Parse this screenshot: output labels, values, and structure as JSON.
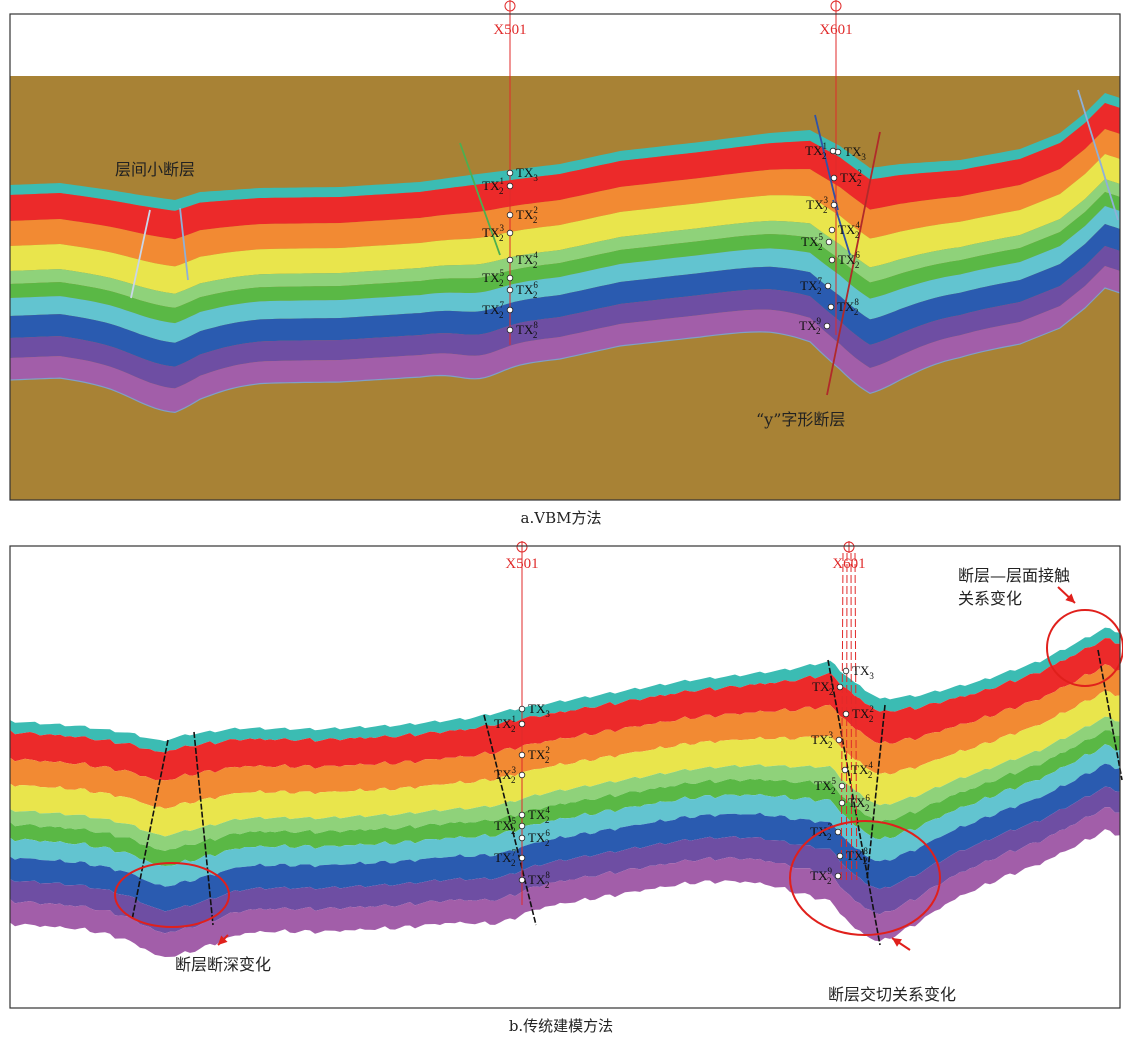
{
  "colors": {
    "background_a": "#a88235",
    "layers": [
      "#3bbcb3",
      "#ec2a2a",
      "#f28a33",
      "#e9e54c",
      "#8fd27a",
      "#5ab845",
      "#62c4d0",
      "#2a5bb0",
      "#6e4ea3",
      "#a25ea9"
    ],
    "well_line": "#e02a2a",
    "annotation_red": "#e0201c",
    "fault_black": "#111111"
  },
  "panel_a": {
    "caption": "a.VBM方法",
    "wells": [
      {
        "name": "X501"
      },
      {
        "name": "X601"
      }
    ],
    "annotations": {
      "small_fault": "层间小断层",
      "y_fault": "“y”字形断层"
    },
    "well_markers_x501": [
      {
        "base": "TX",
        "sub": "3",
        "sup": ""
      },
      {
        "base": "TX",
        "sub": "2",
        "sup": "1"
      },
      {
        "base": "TX",
        "sub": "2",
        "sup": "2"
      },
      {
        "base": "TX",
        "sub": "2",
        "sup": "3"
      },
      {
        "base": "TX",
        "sub": "2",
        "sup": "4"
      },
      {
        "base": "TX",
        "sub": "2",
        "sup": "5"
      },
      {
        "base": "TX",
        "sub": "2",
        "sup": "6"
      },
      {
        "base": "TX",
        "sub": "2",
        "sup": "7"
      },
      {
        "base": "TX",
        "sub": "2",
        "sup": "8"
      }
    ],
    "well_markers_x601": [
      {
        "base": "TX",
        "sub": "3",
        "sup": ""
      },
      {
        "base": "TX",
        "sub": "2",
        "sup": "1"
      },
      {
        "base": "TX",
        "sub": "2",
        "sup": "2"
      },
      {
        "base": "TX",
        "sub": "2",
        "sup": "3"
      },
      {
        "base": "TX",
        "sub": "2",
        "sup": "4"
      },
      {
        "base": "TX",
        "sub": "2",
        "sup": "5"
      },
      {
        "base": "TX",
        "sub": "2",
        "sup": "6"
      },
      {
        "base": "TX",
        "sub": "2",
        "sup": "7"
      },
      {
        "base": "TX",
        "sub": "2",
        "sup": "8"
      },
      {
        "base": "TX",
        "sub": "2",
        "sup": "9"
      }
    ]
  },
  "panel_b": {
    "caption": "b.传统建模方法",
    "wells": [
      {
        "name": "X501"
      },
      {
        "name": "X601"
      }
    ],
    "annotations": {
      "contact_change_line1": "断层—层面接触",
      "contact_change_line2": "关系变化",
      "throw_change": "断层断深变化",
      "intersection_change": "断层交切关系变化"
    },
    "well_markers_x501": [
      {
        "base": "TX",
        "sub": "3",
        "sup": ""
      },
      {
        "base": "TX",
        "sub": "2",
        "sup": "1"
      },
      {
        "base": "TX",
        "sub": "2",
        "sup": "2"
      },
      {
        "base": "TX",
        "sub": "2",
        "sup": "3"
      },
      {
        "base": "TX",
        "sub": "2",
        "sup": "4"
      },
      {
        "base": "TX",
        "sub": "2",
        "sup": "5"
      },
      {
        "base": "TX",
        "sub": "2",
        "sup": "6"
      },
      {
        "base": "TX",
        "sub": "2",
        "sup": "7"
      },
      {
        "base": "TX",
        "sub": "2",
        "sup": "8"
      }
    ],
    "well_markers_x601": [
      {
        "base": "TX",
        "sub": "3",
        "sup": ""
      },
      {
        "base": "TX",
        "sub": "2",
        "sup": "1"
      },
      {
        "base": "TX",
        "sub": "2",
        "sup": "2"
      },
      {
        "base": "TX",
        "sub": "2",
        "sup": "3"
      },
      {
        "base": "TX",
        "sub": "2",
        "sup": "4"
      },
      {
        "base": "TX",
        "sub": "2",
        "sup": "5"
      },
      {
        "base": "TX",
        "sub": "2",
        "sup": "6"
      },
      {
        "base": "TX",
        "sub": "2",
        "sup": "7"
      },
      {
        "base": "TX",
        "sub": "2",
        "sup": "8"
      },
      {
        "base": "TX",
        "sub": "2",
        "sup": "9"
      }
    ]
  }
}
